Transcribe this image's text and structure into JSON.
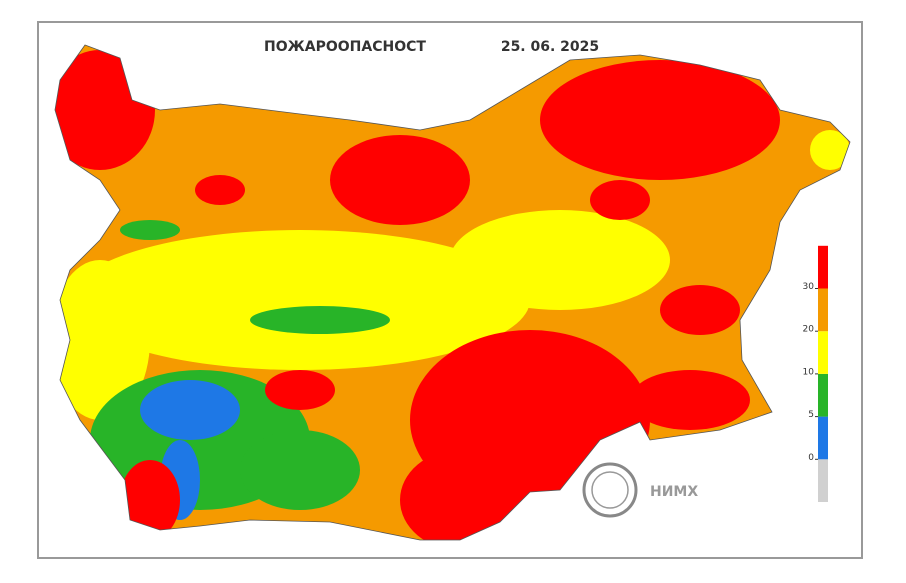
{
  "header": {
    "title": "ПОЖАРООПАСНОСТ",
    "date": "25. 06. 2025"
  },
  "legend": {
    "colors": [
      "#d0d0d0",
      "#1e78e6",
      "#28b428",
      "#ffff00",
      "#f59a00",
      "#ff0000"
    ],
    "ticks": [
      0,
      5,
      10,
      20,
      30
    ]
  },
  "logo": {
    "text": "НИМХ"
  }
}
